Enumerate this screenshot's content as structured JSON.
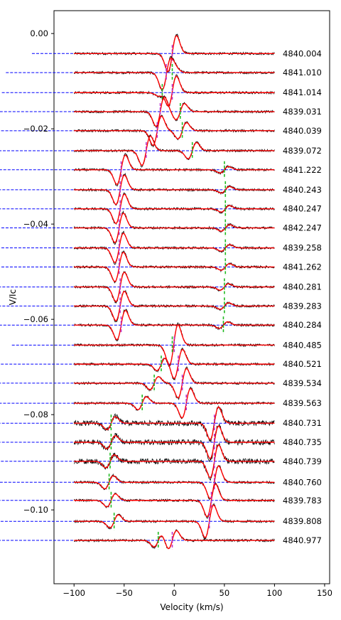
{
  "chart_data": {
    "type": "line",
    "xlabel": "Velocity (km/s)",
    "ylabel": "V/Ic",
    "xlim": [
      -120,
      155
    ],
    "ylim": [
      -0.1155,
      0.0048
    ],
    "x_ticks": [
      -100,
      -50,
      0,
      50,
      100,
      150
    ],
    "y_ticks": [
      0.0,
      -0.02,
      -0.04,
      -0.06,
      -0.08,
      -0.1
    ],
    "x_tick_labels": [
      "−100",
      "−50",
      "0",
      "50",
      "100",
      "150"
    ],
    "y_tick_labels": [
      "0.00",
      "−0.02",
      "−0.04",
      "−0.06",
      "−0.08",
      "−0.10"
    ],
    "grid": false,
    "colors": {
      "observed": "#000000",
      "model": "#ff0000",
      "baseline": "#0000ff",
      "primary_marker": "#bb33cc",
      "secondary_marker": "#22bb22"
    },
    "velocity_range": [
      -100,
      100
    ],
    "series": [
      {
        "label": "4840.004",
        "offset": -0.0042,
        "v1": -2,
        "v2": null,
        "a1": 0.0055,
        "a2": 0
      },
      {
        "label": "4841.010",
        "offset": -0.0082,
        "v1": -8,
        "v2": -2,
        "a1": 0.005,
        "a2": 0.001
      },
      {
        "label": "4841.014",
        "offset": -0.0124,
        "v1": -2,
        "v2": -12,
        "a1": 0.005,
        "a2": 0.001
      },
      {
        "label": "4839.031",
        "offset": -0.0164,
        "v1": -14,
        "v2": 6,
        "a1": 0.0045,
        "a2": 0.0025
      },
      {
        "label": "4840.039",
        "offset": -0.0204,
        "v1": -17,
        "v2": 8,
        "a1": 0.0045,
        "a2": 0.0025
      },
      {
        "label": "4839.072",
        "offset": -0.0246,
        "v1": -28,
        "v2": 18,
        "a1": 0.0045,
        "a2": 0.0025
      },
      {
        "label": "4841.222",
        "offset": -0.0286,
        "v1": -53,
        "v2": 50,
        "a1": 0.0045,
        "a2": 0.001
      },
      {
        "label": "4840.243",
        "offset": -0.0328,
        "v1": -54,
        "v2": 51,
        "a1": 0.0045,
        "a2": 0.001
      },
      {
        "label": "4840.247",
        "offset": -0.0368,
        "v1": -54,
        "v2": 51,
        "a1": 0.0045,
        "a2": 0.001
      },
      {
        "label": "4842.247",
        "offset": -0.0408,
        "v1": -55,
        "v2": 51,
        "a1": 0.0045,
        "a2": 0.001
      },
      {
        "label": "4839.258",
        "offset": -0.045,
        "v1": -55,
        "v2": 51,
        "a1": 0.0045,
        "a2": 0.001
      },
      {
        "label": "4841.262",
        "offset": -0.049,
        "v1": -55,
        "v2": 51,
        "a1": 0.0045,
        "a2": 0.001
      },
      {
        "label": "4840.281",
        "offset": -0.0532,
        "v1": -54,
        "v2": 50,
        "a1": 0.0045,
        "a2": 0.001
      },
      {
        "label": "4839.283",
        "offset": -0.0572,
        "v1": -54,
        "v2": 50,
        "a1": 0.0045,
        "a2": 0.001
      },
      {
        "label": "4840.284",
        "offset": -0.0612,
        "v1": -53,
        "v2": 49,
        "a1": 0.0045,
        "a2": 0.001
      },
      {
        "label": "4840.485",
        "offset": -0.0654,
        "v1": 0,
        "v2": -2,
        "a1": 0.0045,
        "a2": 0.002
      },
      {
        "label": "4840.521",
        "offset": -0.0694,
        "v1": 4,
        "v2": -13,
        "a1": 0.0045,
        "a2": 0.002
      },
      {
        "label": "4839.534",
        "offset": -0.0734,
        "v1": 8,
        "v2": -20,
        "a1": 0.0045,
        "a2": 0.002
      },
      {
        "label": "4839.563",
        "offset": -0.0776,
        "v1": 12,
        "v2": -32,
        "a1": 0.0045,
        "a2": 0.002
      },
      {
        "label": "4840.731",
        "offset": -0.0818,
        "v1": 40,
        "v2": -63,
        "a1": 0.005,
        "a2": 0.002
      },
      {
        "label": "4840.735",
        "offset": -0.0858,
        "v1": 40,
        "v2": -63,
        "a1": 0.005,
        "a2": 0.002
      },
      {
        "label": "4840.739",
        "offset": -0.0898,
        "v1": 40,
        "v2": -64,
        "a1": 0.005,
        "a2": 0.002
      },
      {
        "label": "4840.760",
        "offset": -0.0942,
        "v1": 40,
        "v2": -65,
        "a1": 0.005,
        "a2": 0.002
      },
      {
        "label": "4839.783",
        "offset": -0.098,
        "v1": 37,
        "v2": -63,
        "a1": 0.005,
        "a2": 0.002
      },
      {
        "label": "4839.808",
        "offset": -0.1024,
        "v1": 35,
        "v2": -60,
        "a1": 0.005,
        "a2": 0.002
      },
      {
        "label": "4840.977",
        "offset": -0.1064,
        "v1": -2,
        "v2": -16,
        "a1": 0.003,
        "a2": 0.002
      }
    ]
  }
}
